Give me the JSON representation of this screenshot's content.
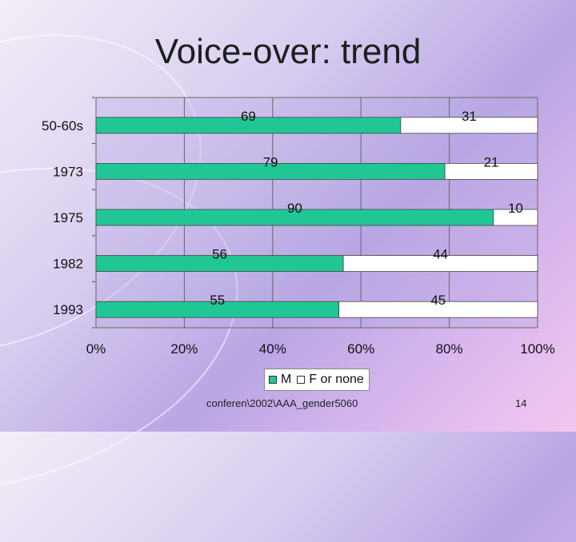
{
  "slide": {
    "title": "Voice-over: trend",
    "footer": "conferen\\2002\\AAA_gender5060",
    "page_number": "14"
  },
  "colors": {
    "m": "#20c795",
    "f": "#ffffff",
    "grid": "#666666",
    "plot_bg": "#b8a8e2"
  },
  "chart_data": {
    "type": "bar",
    "orientation": "horizontal",
    "stacked": "percent",
    "title": "",
    "xlabel": "",
    "ylabel": "",
    "categories": [
      "50-60s",
      "1973",
      "1975",
      "1982",
      "1993"
    ],
    "series": [
      {
        "name": "M",
        "values": [
          69,
          79,
          90,
          56,
          55
        ]
      },
      {
        "name": "F or none",
        "values": [
          31,
          21,
          10,
          44,
          45
        ]
      }
    ],
    "x_ticks": [
      "0%",
      "20%",
      "40%",
      "60%",
      "80%",
      "100%"
    ],
    "xlim": [
      0,
      100
    ],
    "grid": "vertical",
    "legend": "bottom"
  }
}
